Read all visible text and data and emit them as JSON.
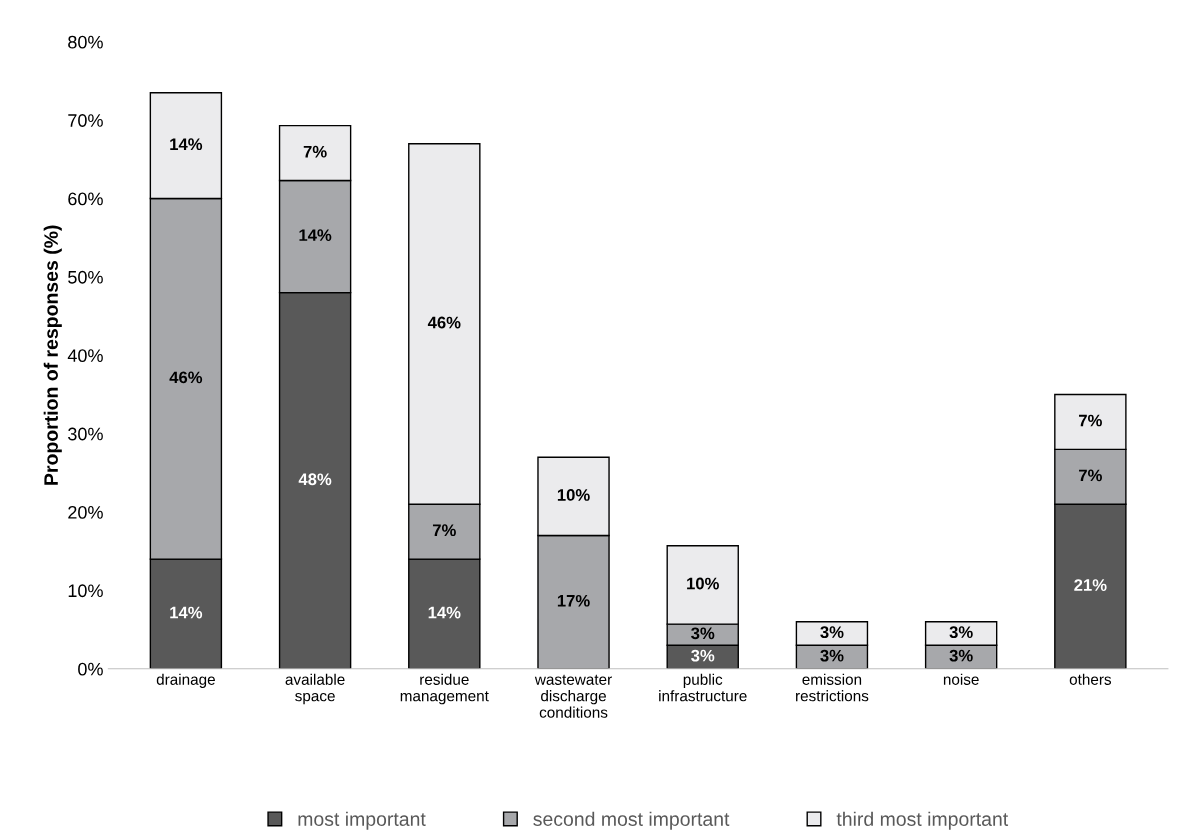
{
  "chart_data": {
    "type": "bar",
    "stacked": true,
    "ylabel": "Proportion of responses (%)",
    "categories": [
      "drainage",
      "available\nspace",
      "residue\nmanagement",
      "wastewater\ndischarge\nconditions",
      "public\ninfrastructure",
      "emission\nrestrictions",
      "noise",
      "others"
    ],
    "series": [
      {
        "name": "most important",
        "color": "#595959",
        "values": [
          14,
          48,
          14,
          0,
          3,
          0,
          0,
          21
        ],
        "value_labels": [
          "14%",
          "48%",
          "14%",
          null,
          "3%",
          null,
          null,
          "21%"
        ]
      },
      {
        "name": "second most important",
        "color": "#a7a8ab",
        "values": [
          46,
          14.3,
          7,
          17,
          2.7,
          3,
          3,
          7
        ],
        "value_labels": [
          "46%",
          "14%",
          "7%",
          "17%",
          "3%",
          "3%",
          "3%",
          "7%"
        ]
      },
      {
        "name": "third most important",
        "color": "#ebebed",
        "values": [
          13.5,
          7,
          46,
          10,
          10,
          3,
          3,
          7
        ],
        "value_labels": [
          "14%",
          "7%",
          "46%",
          "10%",
          "10%",
          "3%",
          "3%",
          "7%"
        ]
      }
    ],
    "ylim": [
      0,
      80
    ],
    "yticks": [
      {
        "value": 0,
        "label": "0%"
      },
      {
        "value": 10,
        "label": "10%"
      },
      {
        "value": 20,
        "label": "20%"
      },
      {
        "value": 30,
        "label": "30%"
      },
      {
        "value": 40,
        "label": "40%"
      },
      {
        "value": 50,
        "label": "50%"
      },
      {
        "value": 60,
        "label": "60%"
      },
      {
        "value": 70,
        "label": "70%"
      },
      {
        "value": 80,
        "label": "80%"
      }
    ],
    "grid": false,
    "legend": "bottom"
  }
}
